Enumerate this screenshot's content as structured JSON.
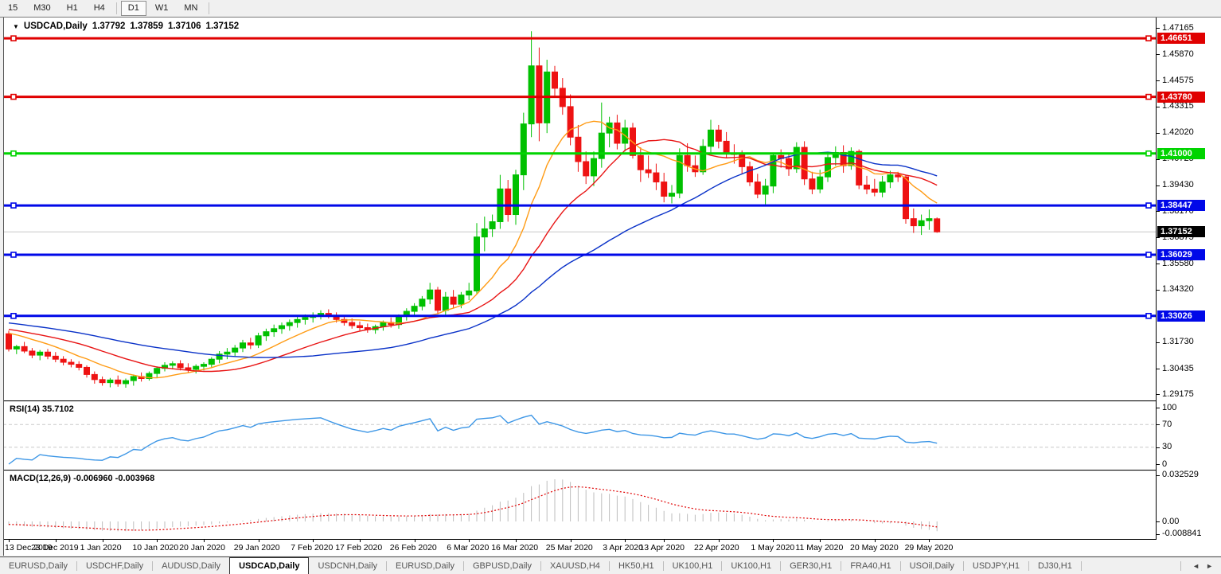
{
  "toolbar": {
    "buttons": [
      {
        "label": "15",
        "active": false
      },
      {
        "label": "M30",
        "active": false
      },
      {
        "label": "H1",
        "active": false
      },
      {
        "label": "H4",
        "active": false
      },
      {
        "label": "D1",
        "active": true
      },
      {
        "label": "W1",
        "active": false
      },
      {
        "label": "MN",
        "active": false
      }
    ]
  },
  "chart": {
    "title": {
      "dropdown_icon": "▼",
      "symbol": "USDCAD,Daily",
      "open": "1.37792",
      "high": "1.37859",
      "low": "1.37106",
      "close": "1.37152"
    },
    "price_axis_labels": [
      "1.47165",
      "1.45870",
      "1.44575",
      "1.43315",
      "1.42020",
      "1.40725",
      "1.39430",
      "1.38170",
      "1.36875",
      "1.35580",
      "1.34320",
      "1.31730",
      "1.30435",
      "1.29175"
    ],
    "rsi_axis_labels": [
      "100",
      "70",
      "30",
      "0"
    ],
    "macd_axis_labels": [
      "0.032529",
      "0.00",
      "-0.008841"
    ],
    "colors": {
      "bull": "#00c000",
      "bear": "#ee1212",
      "hline_red": "#e00000",
      "hline_green": "#00d400",
      "hline_blue": "#0008e8",
      "ma_fast": "#ff9b14",
      "ma_mid": "#e81414",
      "ma_slow": "#0a32c8",
      "rsi_line": "#3c96e6",
      "macd_hist": "#bdbdbd",
      "macd_signal": "#e00000",
      "current_price_line": "#c8c8c8",
      "current_price_badge": "#000000",
      "grid_dash": "#c8c8c8"
    }
  },
  "chart_data": {
    "type": "candlestick+indicators",
    "symbol": "USDCAD",
    "timeframe": "Daily",
    "price_range_axis": [
      1.29175,
      1.47165
    ],
    "hlines": [
      {
        "price": 1.46651,
        "label": "1.46651",
        "color_key": "hline_red"
      },
      {
        "price": 1.4378,
        "label": "1.43780",
        "color_key": "hline_red"
      },
      {
        "price": 1.41,
        "label": "1.41000",
        "color_key": "hline_green"
      },
      {
        "price": 1.38447,
        "label": "1.38447",
        "color_key": "hline_blue"
      },
      {
        "price": 1.36029,
        "label": "1.36029",
        "color_key": "hline_blue"
      },
      {
        "price": 1.33026,
        "label": "1.33026",
        "color_key": "hline_blue"
      }
    ],
    "current_price": {
      "value": 1.37152,
      "label": "1.37152"
    },
    "date_ticks": [
      {
        "label": "13 Dec 2019",
        "bar": 0
      },
      {
        "label": "23 Dec 2019",
        "bar": 6
      },
      {
        "label": "1 Jan 2020",
        "bar": 12
      },
      {
        "label": "10 Jan 2020",
        "bar": 19
      },
      {
        "label": "20 Jan 2020",
        "bar": 25
      },
      {
        "label": "29 Jan 2020",
        "bar": 32
      },
      {
        "label": "7 Feb 2020",
        "bar": 39
      },
      {
        "label": "17 Feb 2020",
        "bar": 45
      },
      {
        "label": "26 Feb 2020",
        "bar": 52
      },
      {
        "label": "6 Mar 2020",
        "bar": 59
      },
      {
        "label": "16 Mar 2020",
        "bar": 65
      },
      {
        "label": "25 Mar 2020",
        "bar": 72
      },
      {
        "label": "3 Apr 2020",
        "bar": 79
      },
      {
        "label": "13 Apr 2020",
        "bar": 84
      },
      {
        "label": "22 Apr 2020",
        "bar": 91
      },
      {
        "label": "1 May 2020",
        "bar": 98
      },
      {
        "label": "11 May 2020",
        "bar": 104
      },
      {
        "label": "20 May 2020",
        "bar": 111
      },
      {
        "label": "29 May 2020",
        "bar": 118
      }
    ],
    "candles": [
      [
        1.3215,
        1.323,
        1.3128,
        1.314
      ],
      [
        1.314,
        1.316,
        1.3115,
        1.3152
      ],
      [
        1.3152,
        1.3175,
        1.312,
        1.313
      ],
      [
        1.313,
        1.3145,
        1.3095,
        1.311
      ],
      [
        1.311,
        1.3135,
        1.3085,
        1.3125
      ],
      [
        1.3125,
        1.314,
        1.309,
        1.3105
      ],
      [
        1.3105,
        1.3125,
        1.3075,
        1.309
      ],
      [
        1.309,
        1.3105,
        1.306,
        1.3075
      ],
      [
        1.3075,
        1.309,
        1.305,
        1.3065
      ],
      [
        1.3065,
        1.308,
        1.3035,
        1.305
      ],
      [
        1.305,
        1.306,
        1.3,
        1.3015
      ],
      [
        1.3015,
        1.303,
        1.297,
        1.299
      ],
      [
        1.299,
        1.3005,
        1.296,
        1.2975
      ],
      [
        1.2975,
        1.2998,
        1.2952,
        1.2988
      ],
      [
        1.2988,
        1.301,
        1.2955,
        1.297
      ],
      [
        1.297,
        1.2995,
        1.295,
        1.2985
      ],
      [
        1.2985,
        1.3015,
        1.296,
        1.3005
      ],
      [
        1.3005,
        1.3025,
        1.298,
        1.2995
      ],
      [
        1.2995,
        1.303,
        1.2985,
        1.302
      ],
      [
        1.302,
        1.3055,
        1.3,
        1.3045
      ],
      [
        1.3045,
        1.3075,
        1.303,
        1.306
      ],
      [
        1.306,
        1.308,
        1.304,
        1.3068
      ],
      [
        1.3068,
        1.3085,
        1.3035,
        1.3048
      ],
      [
        1.3048,
        1.307,
        1.3025,
        1.304
      ],
      [
        1.304,
        1.3065,
        1.302,
        1.3055
      ],
      [
        1.3055,
        1.3075,
        1.3035,
        1.3065
      ],
      [
        1.3065,
        1.31,
        1.305,
        1.309
      ],
      [
        1.309,
        1.313,
        1.307,
        1.3115
      ],
      [
        1.3115,
        1.3145,
        1.309,
        1.3125
      ],
      [
        1.3125,
        1.316,
        1.3105,
        1.3145
      ],
      [
        1.3145,
        1.3185,
        1.3125,
        1.317
      ],
      [
        1.317,
        1.3195,
        1.314,
        1.316
      ],
      [
        1.316,
        1.322,
        1.3145,
        1.3205
      ],
      [
        1.3205,
        1.324,
        1.318,
        1.3225
      ],
      [
        1.3225,
        1.326,
        1.32,
        1.324
      ],
      [
        1.324,
        1.327,
        1.3215,
        1.3255
      ],
      [
        1.3255,
        1.3285,
        1.323,
        1.327
      ],
      [
        1.327,
        1.33,
        1.3245,
        1.3285
      ],
      [
        1.3285,
        1.331,
        1.326,
        1.3295
      ],
      [
        1.3295,
        1.332,
        1.327,
        1.3305
      ],
      [
        1.3305,
        1.333,
        1.3285,
        1.3315
      ],
      [
        1.3315,
        1.3335,
        1.329,
        1.33
      ],
      [
        1.33,
        1.332,
        1.327,
        1.3285
      ],
      [
        1.3285,
        1.3305,
        1.3255,
        1.327
      ],
      [
        1.327,
        1.329,
        1.324,
        1.3255
      ],
      [
        1.3255,
        1.3275,
        1.323,
        1.3245
      ],
      [
        1.3245,
        1.3265,
        1.322,
        1.3235
      ],
      [
        1.3235,
        1.326,
        1.3215,
        1.325
      ],
      [
        1.325,
        1.328,
        1.323,
        1.327
      ],
      [
        1.327,
        1.3295,
        1.3245,
        1.326
      ],
      [
        1.326,
        1.331,
        1.324,
        1.33
      ],
      [
        1.33,
        1.334,
        1.328,
        1.3325
      ],
      [
        1.3325,
        1.3365,
        1.33,
        1.335
      ],
      [
        1.335,
        1.34,
        1.333,
        1.3385
      ],
      [
        1.3385,
        1.3465,
        1.336,
        1.343
      ],
      [
        1.343,
        1.3445,
        1.331,
        1.333
      ],
      [
        1.333,
        1.342,
        1.3305,
        1.3395
      ],
      [
        1.3395,
        1.343,
        1.334,
        1.336
      ],
      [
        1.336,
        1.342,
        1.334,
        1.3405
      ],
      [
        1.3405,
        1.3465,
        1.338,
        1.3425
      ],
      [
        1.3425,
        1.3758,
        1.341,
        1.369
      ],
      [
        1.369,
        1.379,
        1.362,
        1.373
      ],
      [
        1.373,
        1.38,
        1.369,
        1.3765
      ],
      [
        1.3765,
        1.3995,
        1.373,
        1.3926
      ],
      [
        1.3926,
        1.397,
        1.3765,
        1.38
      ],
      [
        1.38,
        1.402,
        1.375,
        1.3995
      ],
      [
        1.3995,
        1.43,
        1.392,
        1.4245
      ],
      [
        1.4245,
        1.47,
        1.418,
        1.453
      ],
      [
        1.453,
        1.462,
        1.416,
        1.425
      ],
      [
        1.425,
        1.456,
        1.42,
        1.45
      ],
      [
        1.45,
        1.453,
        1.438,
        1.442
      ],
      [
        1.442,
        1.447,
        1.429,
        1.433
      ],
      [
        1.433,
        1.439,
        1.414,
        1.418
      ],
      [
        1.418,
        1.424,
        1.401,
        1.406
      ],
      [
        1.406,
        1.411,
        1.395,
        1.399
      ],
      [
        1.399,
        1.411,
        1.394,
        1.4075
      ],
      [
        1.4075,
        1.435,
        1.403,
        1.42
      ],
      [
        1.42,
        1.428,
        1.413,
        1.425
      ],
      [
        1.425,
        1.429,
        1.412,
        1.415
      ],
      [
        1.415,
        1.4265,
        1.411,
        1.4225
      ],
      [
        1.4225,
        1.425,
        1.4075,
        1.409
      ],
      [
        1.409,
        1.413,
        1.396,
        1.402
      ],
      [
        1.402,
        1.409,
        1.398,
        1.4005
      ],
      [
        1.4005,
        1.405,
        1.392,
        1.396
      ],
      [
        1.396,
        1.4005,
        1.386,
        1.389
      ],
      [
        1.389,
        1.3945,
        1.3855,
        1.3905
      ],
      [
        1.3905,
        1.4125,
        1.388,
        1.409
      ],
      [
        1.409,
        1.415,
        1.401,
        1.404
      ],
      [
        1.404,
        1.409,
        1.3985,
        1.401
      ],
      [
        1.401,
        1.417,
        1.3995,
        1.4135
      ],
      [
        1.4135,
        1.4265,
        1.41,
        1.4215
      ],
      [
        1.4215,
        1.424,
        1.4125,
        1.416
      ],
      [
        1.416,
        1.4205,
        1.408,
        1.41
      ],
      [
        1.41,
        1.4145,
        1.405,
        1.4095
      ],
      [
        1.4095,
        1.4115,
        1.4,
        1.4035
      ],
      [
        1.4035,
        1.406,
        1.394,
        1.396
      ],
      [
        1.396,
        1.4,
        1.388,
        1.39
      ],
      [
        1.39,
        1.3975,
        1.385,
        1.394
      ],
      [
        1.394,
        1.4105,
        1.3905,
        1.409
      ],
      [
        1.409,
        1.412,
        1.403,
        1.4075
      ],
      [
        1.4075,
        1.4095,
        1.399,
        1.4025
      ],
      [
        1.4025,
        1.4155,
        1.4005,
        1.413
      ],
      [
        1.413,
        1.416,
        1.3945,
        1.3975
      ],
      [
        1.3975,
        1.401,
        1.39,
        1.3925
      ],
      [
        1.3925,
        1.402,
        1.3905,
        1.3985
      ],
      [
        1.3985,
        1.4095,
        1.396,
        1.408
      ],
      [
        1.408,
        1.4135,
        1.404,
        1.4105
      ],
      [
        1.4105,
        1.414,
        1.4005,
        1.404
      ],
      [
        1.404,
        1.413,
        1.402,
        1.411
      ],
      [
        1.411,
        1.412,
        1.3925,
        1.3945
      ],
      [
        1.3945,
        1.399,
        1.39,
        1.3925
      ],
      [
        1.3925,
        1.3975,
        1.389,
        1.391
      ],
      [
        1.391,
        1.399,
        1.3885,
        1.396
      ],
      [
        1.396,
        1.4015,
        1.393,
        1.3995
      ],
      [
        1.3995,
        1.401,
        1.396,
        1.3985
      ],
      [
        1.3985,
        1.3995,
        1.3755,
        1.378
      ],
      [
        1.378,
        1.383,
        1.371,
        1.3745
      ],
      [
        1.3745,
        1.38,
        1.37,
        1.377
      ],
      [
        1.377,
        1.3825,
        1.3725,
        1.378
      ],
      [
        1.37792,
        1.37859,
        1.37106,
        1.37152
      ]
    ],
    "moving_averages": [
      {
        "name": "fast",
        "period": 10,
        "color_key": "ma_fast"
      },
      {
        "name": "mid",
        "period": 20,
        "color_key": "ma_mid"
      },
      {
        "name": "slow",
        "period": 40,
        "color_key": "ma_slow"
      }
    ],
    "rsi": {
      "label": "RSI(14) 35.7102",
      "period": 14,
      "levels": [
        70,
        30
      ],
      "range": [
        0,
        100
      ],
      "last_value": 35.7102
    },
    "macd": {
      "label": "MACD(12,26,9) -0.006960 -0.003968",
      "fast": 12,
      "slow": 26,
      "signal": 9,
      "range": [
        -0.008841,
        0.032529
      ],
      "last_main": -0.00696,
      "last_signal": -0.003968
    },
    "prehistory": {
      "from": 1.336,
      "to": 1.3215,
      "bars": 50
    }
  },
  "tabs": {
    "items": [
      {
        "label": "EURUSD,Daily",
        "active": false
      },
      {
        "label": "USDCHF,Daily",
        "active": false
      },
      {
        "label": "AUDUSD,Daily",
        "active": false
      },
      {
        "label": "USDCAD,Daily",
        "active": true
      },
      {
        "label": "USDCNH,Daily",
        "active": false
      },
      {
        "label": "EURUSD,Daily",
        "active": false
      },
      {
        "label": "GBPUSD,Daily",
        "active": false
      },
      {
        "label": "XAUUSD,H4",
        "active": false
      },
      {
        "label": "HK50,H1",
        "active": false
      },
      {
        "label": "UK100,H1",
        "active": false
      },
      {
        "label": "UK100,H1",
        "active": false
      },
      {
        "label": "GER30,H1",
        "active": false
      },
      {
        "label": "FRA40,H1",
        "active": false
      },
      {
        "label": "USOil,Daily",
        "active": false
      },
      {
        "label": "USDJPY,H1",
        "active": false
      },
      {
        "label": "DJ30,H1",
        "active": false
      }
    ],
    "scroll_left": "◄",
    "scroll_right": "►"
  }
}
